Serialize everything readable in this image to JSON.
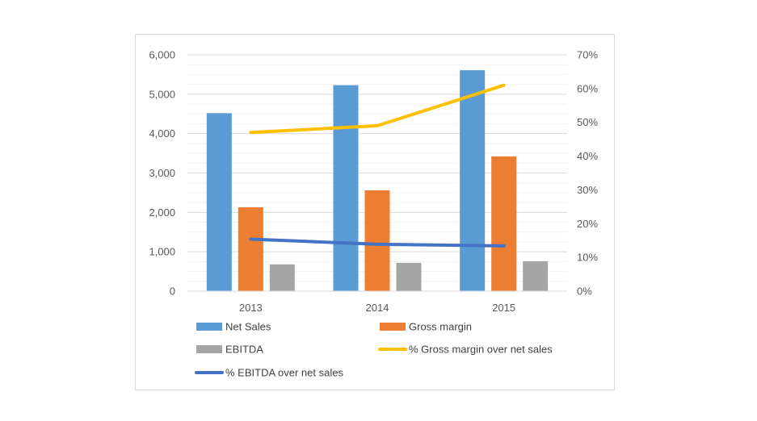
{
  "chart_data": {
    "type": "bar",
    "title": "",
    "categories": [
      "2013",
      "2014",
      "2015"
    ],
    "series": [
      {
        "name": "Net Sales",
        "type": "bar",
        "axis": "left",
        "color": "#5b9bd5",
        "values": [
          4520,
          5230,
          5610
        ]
      },
      {
        "name": "Gross margin",
        "type": "bar",
        "axis": "left",
        "color": "#ed7d31",
        "values": [
          2130,
          2560,
          3420
        ]
      },
      {
        "name": "EBITDA",
        "type": "bar",
        "axis": "left",
        "color": "#a5a5a5",
        "values": [
          680,
          720,
          760
        ]
      },
      {
        "name": "% Gross margin over net sales",
        "type": "line",
        "axis": "right",
        "color": "#ffc000",
        "values": [
          0.47,
          0.49,
          0.61
        ]
      },
      {
        "name": "% EBITDA over net sales",
        "type": "line",
        "axis": "right",
        "color": "#4472c4",
        "values": [
          0.154,
          0.139,
          0.134
        ]
      }
    ],
    "y_left": {
      "min": 0,
      "max": 6000,
      "ticks": [
        0,
        1000,
        2000,
        3000,
        4000,
        5000,
        6000
      ],
      "tick_labels": [
        "0",
        "1,000",
        "2,000",
        "3,000",
        "4,000",
        "5,000",
        "6,000"
      ]
    },
    "y_right": {
      "min": 0,
      "max": 0.7,
      "ticks": [
        0,
        0.1,
        0.2,
        0.3,
        0.4,
        0.5,
        0.6,
        0.7
      ],
      "tick_labels": [
        "0%",
        "10%",
        "20%",
        "30%",
        "40%",
        "50%",
        "60%",
        "70%"
      ]
    },
    "grid": true,
    "legend_position": "bottom"
  }
}
